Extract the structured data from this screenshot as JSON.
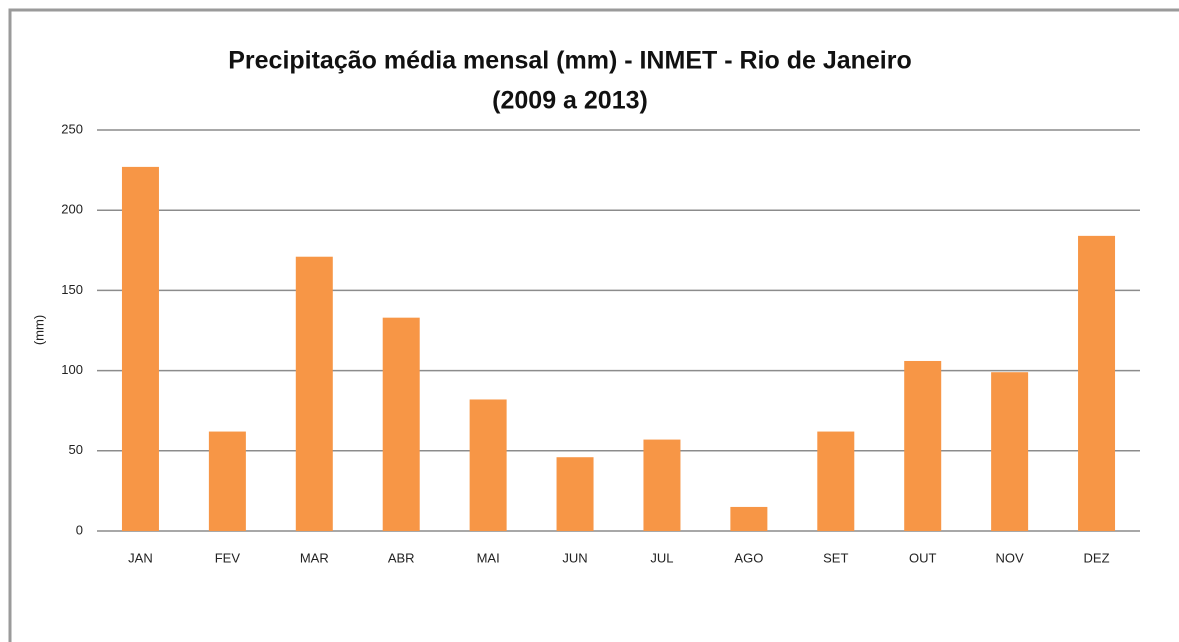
{
  "chart_data": {
    "type": "bar",
    "title": "Precipitação média mensal (mm)  -  INMET - Rio de Janeiro",
    "subtitle": "(2009 a 2013)",
    "y_label": "(mm)",
    "categories": [
      "JAN",
      "FEV",
      "MAR",
      "ABR",
      "MAI",
      "JUN",
      "JUL",
      "AGO",
      "SET",
      "OUT",
      "NOV",
      "DEZ"
    ],
    "values": [
      227,
      62,
      171,
      133,
      82,
      46,
      57,
      15,
      62,
      106,
      99,
      184
    ],
    "color": "#f79646",
    "ylim": [
      0,
      250
    ],
    "yticks": [
      0,
      50,
      100,
      150,
      200,
      250
    ],
    "grid": true
  }
}
